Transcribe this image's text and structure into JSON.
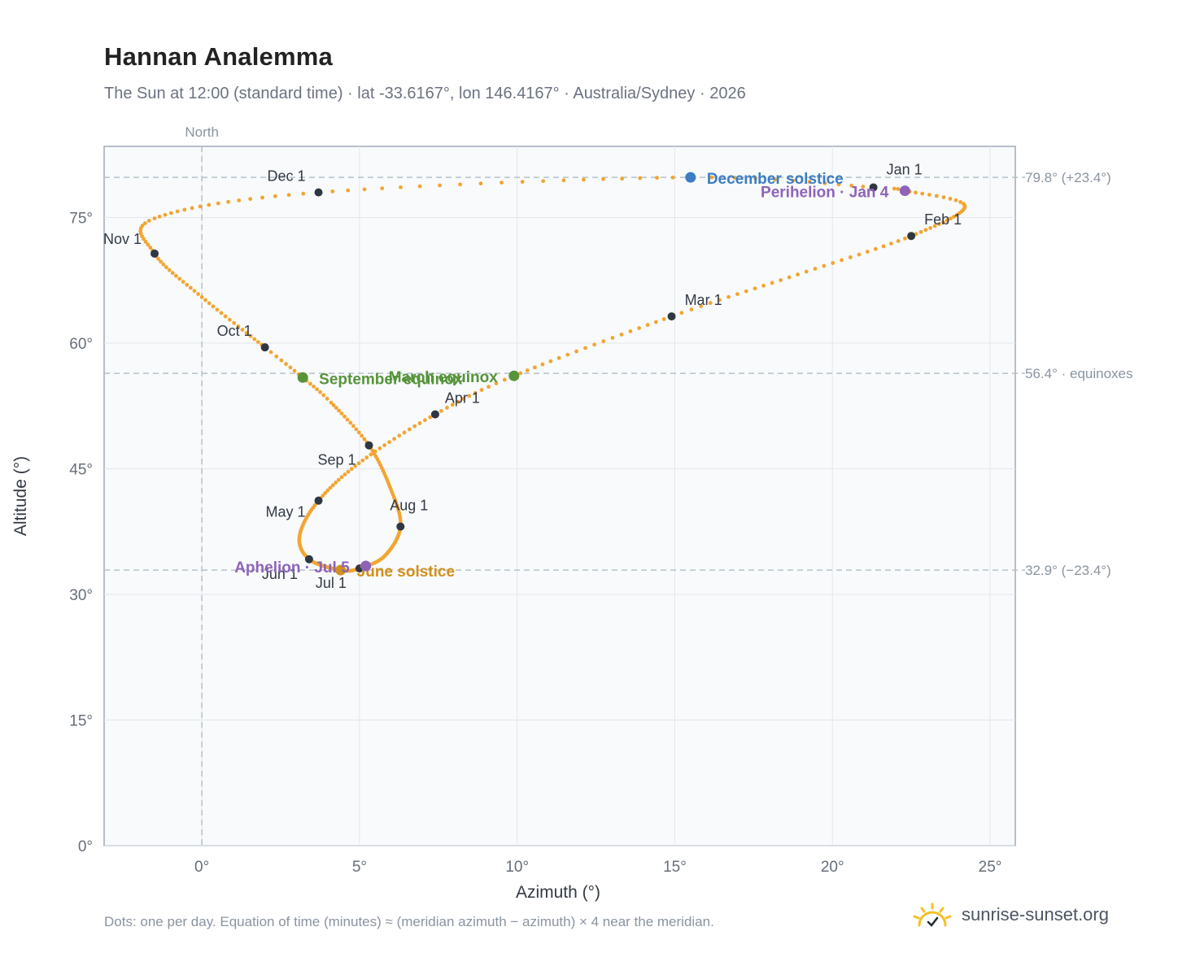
{
  "header": {
    "title": "Hannan Analemma",
    "subtitle": "The Sun at 12:00 (standard time) · lat -33.6167°, lon 146.4167° · Australia/Sydney · 2026"
  },
  "footer": {
    "note": "Dots: one per day. Equation of time (minutes) ≈ (meridian azimuth − azimuth) × 4 near the meridian.",
    "brand": "sunrise-sunset.org"
  },
  "colors": {
    "path": "#f2a531",
    "month_marker": "#2f3742",
    "solstice_dec": "#3c7dc3",
    "equinox": "#56943a",
    "solstice_jun": "#d3901b",
    "perihelion_aphelion": "#8e63b8",
    "reference_line": "#b4c2c8",
    "plot_bg": "#f8fafc",
    "frame": "#a0aab6"
  },
  "chart_data": {
    "type": "scatter",
    "title": "Hannan Analemma",
    "xlabel": "Azimuth (°)",
    "ylabel": "Altitude (°)",
    "xlim": [
      -3.1,
      25.8
    ],
    "ylim": [
      0,
      83.5
    ],
    "x_ticks": [
      0,
      5,
      10,
      15,
      20,
      25
    ],
    "x_tick_labels": [
      "0°",
      "5°",
      "10°",
      "15°",
      "20°",
      "25°"
    ],
    "y_ticks": [
      0,
      15,
      30,
      45,
      60,
      75
    ],
    "y_tick_labels": [
      "0°",
      "15°",
      "30°",
      "45°",
      "60°",
      "75°"
    ],
    "grid": true,
    "north_line": {
      "x": 0,
      "label": "North"
    },
    "reference_lines": [
      {
        "y": 79.8,
        "label": "79.8° (+23.4°)"
      },
      {
        "y": 56.4,
        "label": "56.4° · equinoxes"
      },
      {
        "y": 32.9,
        "label": "32.9° (−23.4°)"
      }
    ],
    "path_note": "one point per day, estimated from the curve",
    "path_anchors": [
      {
        "day": 1,
        "x": 21.3,
        "y": 78.6
      },
      {
        "day": 4,
        "x": 22.3,
        "y": 78.2
      },
      {
        "day": 15,
        "x": 24.2,
        "y": 76.4
      },
      {
        "day": 32,
        "x": 22.5,
        "y": 72.8
      },
      {
        "day": 46,
        "x": 18.9,
        "y": 68.2
      },
      {
        "day": 60,
        "x": 14.9,
        "y": 63.2
      },
      {
        "day": 79,
        "x": 9.9,
        "y": 56.1
      },
      {
        "day": 91,
        "x": 7.4,
        "y": 51.5
      },
      {
        "day": 106,
        "x": 5.1,
        "y": 46.0
      },
      {
        "day": 121,
        "x": 3.7,
        "y": 41.2
      },
      {
        "day": 137,
        "x": 3.1,
        "y": 37.0
      },
      {
        "day": 152,
        "x": 3.4,
        "y": 34.2
      },
      {
        "day": 172,
        "x": 4.4,
        "y": 32.9
      },
      {
        "day": 182,
        "x": 5.0,
        "y": 33.1
      },
      {
        "day": 196,
        "x": 5.8,
        "y": 34.6
      },
      {
        "day": 213,
        "x": 6.3,
        "y": 38.1
      },
      {
        "day": 228,
        "x": 6.0,
        "y": 42.5
      },
      {
        "day": 244,
        "x": 5.3,
        "y": 47.8
      },
      {
        "day": 258,
        "x": 4.1,
        "y": 52.9
      },
      {
        "day": 266,
        "x": 3.2,
        "y": 55.9
      },
      {
        "day": 274,
        "x": 2.0,
        "y": 59.5
      },
      {
        "day": 290,
        "x": 0.0,
        "y": 65.5
      },
      {
        "day": 305,
        "x": -1.5,
        "y": 70.7
      },
      {
        "day": 318,
        "x": -1.5,
        "y": 74.9
      },
      {
        "day": 335,
        "x": 3.7,
        "y": 78.0
      },
      {
        "day": 355,
        "x": 15.4,
        "y": 79.8
      },
      {
        "day": 366,
        "x": 21.3,
        "y": 78.6
      }
    ],
    "month_markers": [
      {
        "label": "Jan 1",
        "x": 21.3,
        "y": 78.6
      },
      {
        "label": "Feb 1",
        "x": 22.5,
        "y": 72.8
      },
      {
        "label": "Mar 1",
        "x": 14.9,
        "y": 63.2
      },
      {
        "label": "Apr 1",
        "x": 7.4,
        "y": 51.5
      },
      {
        "label": "May 1",
        "x": 3.7,
        "y": 41.2
      },
      {
        "label": "Jun 1",
        "x": 3.4,
        "y": 34.2
      },
      {
        "label": "Jul 1",
        "x": 5.0,
        "y": 33.1
      },
      {
        "label": "Aug 1",
        "x": 6.3,
        "y": 38.1
      },
      {
        "label": "Sep 1",
        "x": 5.3,
        "y": 47.8
      },
      {
        "label": "Oct 1",
        "x": 2.0,
        "y": 59.5
      },
      {
        "label": "Nov 1",
        "x": -1.5,
        "y": 70.7
      },
      {
        "label": "Dec 1",
        "x": 3.7,
        "y": 78.0
      }
    ],
    "events": [
      {
        "label": "December solstice",
        "x": 15.5,
        "y": 79.8,
        "color": "#3c7dc3"
      },
      {
        "label": "Perihelion · Jan 4",
        "x": 22.3,
        "y": 78.2,
        "color": "#8e63b8"
      },
      {
        "label": "March equinox",
        "x": 9.9,
        "y": 56.1,
        "color": "#56943a"
      },
      {
        "label": "September equinox",
        "x": 3.2,
        "y": 55.9,
        "color": "#56943a"
      },
      {
        "label": "June solstice",
        "x": 4.4,
        "y": 32.9,
        "color": "#d3901b"
      },
      {
        "label": "Aphelion · Jul 5",
        "x": 5.2,
        "y": 33.4,
        "color": "#8e63b8"
      }
    ]
  }
}
